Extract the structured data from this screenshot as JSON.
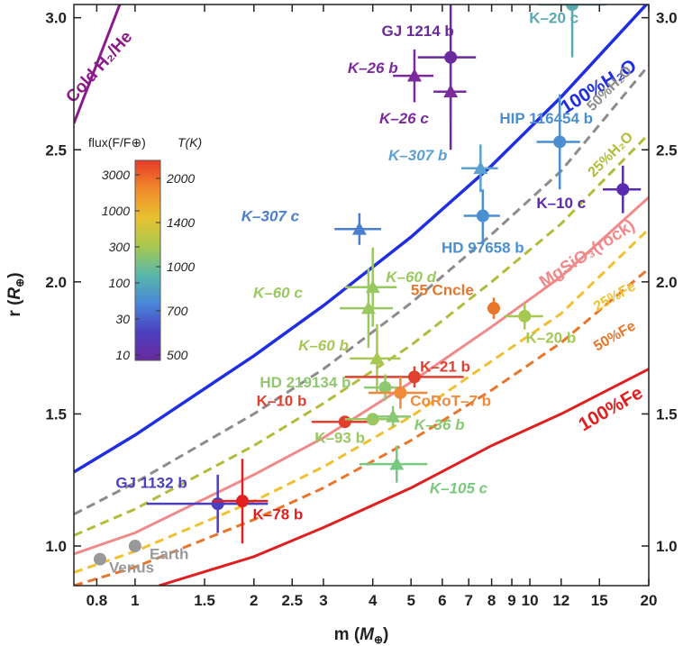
{
  "chart_data": {
    "type": "scatter",
    "xlabel": "m (M⊕)",
    "ylabel": "r (R⊕)",
    "xscale": "log",
    "xlim": [
      0.7,
      20
    ],
    "ylim": [
      0.85,
      3.05
    ],
    "xticks": [
      {
        "v": 0.8,
        "t": "0.8"
      },
      {
        "v": 1,
        "t": "1"
      },
      {
        "v": 1.5,
        "t": "1.5"
      },
      {
        "v": 2,
        "t": "2"
      },
      {
        "v": 2.5,
        "t": "2.5"
      },
      {
        "v": 3,
        "t": "3"
      },
      {
        "v": 4,
        "t": "4"
      },
      {
        "v": 5,
        "t": "5"
      },
      {
        "v": 6,
        "t": "6"
      },
      {
        "v": 7,
        "t": "7"
      },
      {
        "v": 8,
        "t": "8"
      },
      {
        "v": 9,
        "t": "9"
      },
      {
        "v": 10,
        "t": "10"
      },
      {
        "v": 12,
        "t": "12"
      },
      {
        "v": 15,
        "t": "15"
      },
      {
        "v": 20,
        "t": "20"
      }
    ],
    "yticks": [
      {
        "v": 1.0,
        "t": "1.0"
      },
      {
        "v": 1.5,
        "t": "1.5"
      },
      {
        "v": 2.0,
        "t": "2.0"
      },
      {
        "v": 2.5,
        "t": "2.5"
      },
      {
        "v": 3.0,
        "t": "3.0"
      }
    ],
    "curves": [
      {
        "name": "Cold H₂/He",
        "color": "#8b1a8b",
        "dash": false,
        "width": 3,
        "points": [
          [
            0.7,
            2.6
          ],
          [
            1.0,
            3.2
          ]
        ],
        "label": {
          "text": "Cold H₂/He",
          "x": 0.83,
          "y": 2.8,
          "rot": -48,
          "size": 19
        }
      },
      {
        "name": "100%H₂O",
        "color": "#1f2ee0",
        "dash": false,
        "width": 3.5,
        "points": [
          [
            0.7,
            1.28
          ],
          [
            1,
            1.42
          ],
          [
            2,
            1.72
          ],
          [
            3,
            1.91
          ],
          [
            5,
            2.17
          ],
          [
            8,
            2.44
          ],
          [
            12,
            2.7
          ],
          [
            20,
            3.06
          ]
        ],
        "label": {
          "text": "100%H₂O",
          "x": 15.2,
          "y": 2.72,
          "rot": -32,
          "size": 21
        }
      },
      {
        "name": "50%H₂O",
        "color": "#8c8c8c",
        "dash": true,
        "width": 3,
        "points": [
          [
            0.7,
            1.12
          ],
          [
            1,
            1.24
          ],
          [
            2,
            1.5
          ],
          [
            3,
            1.67
          ],
          [
            5,
            1.92
          ],
          [
            8,
            2.18
          ],
          [
            12,
            2.42
          ],
          [
            20,
            2.82
          ]
        ],
        "label": {
          "text": "50%H₂O",
          "x": 16.2,
          "y": 2.72,
          "rot": -45,
          "size": 16
        }
      },
      {
        "name": "25%H₂O",
        "color": "#b2bb3a",
        "dash": true,
        "width": 3,
        "points": [
          [
            0.7,
            1.04
          ],
          [
            1,
            1.14
          ],
          [
            2,
            1.38
          ],
          [
            3,
            1.54
          ],
          [
            5,
            1.76
          ],
          [
            8,
            2.0
          ],
          [
            12,
            2.22
          ],
          [
            20,
            2.56
          ]
        ],
        "label": {
          "text": "25%H₂O",
          "x": 16.3,
          "y": 2.47,
          "rot": -45,
          "size": 16
        }
      },
      {
        "name": "MgSiO₃(rock)",
        "color": "#f08a8a",
        "dash": false,
        "width": 3,
        "points": [
          [
            0.7,
            0.97
          ],
          [
            1,
            1.05
          ],
          [
            2,
            1.27
          ],
          [
            3,
            1.41
          ],
          [
            5,
            1.62
          ],
          [
            8,
            1.83
          ],
          [
            12,
            2.02
          ],
          [
            20,
            2.32
          ]
        ],
        "label": {
          "text": "MgSiO₃(rock)",
          "x": 14.2,
          "y": 2.09,
          "rot": -33,
          "size": 19
        }
      },
      {
        "name": "25%Fe",
        "color": "#f0c030",
        "dash": true,
        "width": 3,
        "points": [
          [
            0.7,
            0.9
          ],
          [
            1,
            0.98
          ],
          [
            2,
            1.17
          ],
          [
            3,
            1.3
          ],
          [
            5,
            1.49
          ],
          [
            8,
            1.7
          ],
          [
            12,
            1.88
          ],
          [
            20,
            2.2
          ]
        ],
        "label": {
          "text": "25%Fe",
          "x": 16.6,
          "y": 1.93,
          "rot": -30,
          "size": 16
        }
      },
      {
        "name": "50%Fe",
        "color": "#e8752a",
        "dash": true,
        "width": 3,
        "points": [
          [
            0.7,
            0.85
          ],
          [
            1,
            0.92
          ],
          [
            2,
            1.1
          ],
          [
            3,
            1.22
          ],
          [
            5,
            1.4
          ],
          [
            8,
            1.59
          ],
          [
            12,
            1.77
          ],
          [
            20,
            2.05
          ]
        ],
        "label": {
          "text": "50%Fe",
          "x": 16.6,
          "y": 1.78,
          "rot": -30,
          "size": 16
        }
      },
      {
        "name": "100%Fe",
        "color": "#e02020",
        "dash": false,
        "width": 3,
        "points": [
          [
            1.15,
            0.85
          ],
          [
            2,
            0.96
          ],
          [
            3,
            1.07
          ],
          [
            5,
            1.22
          ],
          [
            8,
            1.38
          ],
          [
            12,
            1.5
          ],
          [
            20,
            1.67
          ]
        ],
        "label": {
          "text": "100%Fe",
          "x": 16.3,
          "y": 1.5,
          "rot": -30,
          "size": 21
        }
      }
    ],
    "points": [
      {
        "name": "GJ 1214 b",
        "m": 6.3,
        "r": 2.85,
        "xe": [
          1.1,
          1.0
        ],
        "ye": [
          0.35,
          0.35
        ],
        "shape": "circle",
        "color": "#6a2a9c",
        "label": "GJ 1214 b",
        "lx": 5.2,
        "ly": 2.93,
        "lc": "#6a2a9c",
        "italic": false
      },
      {
        "name": "K-26 b",
        "m": 5.1,
        "r": 2.78,
        "xe": [
          0.6,
          0.6
        ],
        "ye": [
          0.1,
          0.1
        ],
        "shape": "triangle",
        "color": "#7a2a9c",
        "label": "K–26 b",
        "lx": 4.0,
        "ly": 2.79,
        "lc": "#7a2a9c",
        "italic": true
      },
      {
        "name": "K-26 c",
        "m": 6.3,
        "r": 2.72,
        "xe": [
          0.6,
          0.6
        ],
        "ye": [
          0.1,
          0.1
        ],
        "shape": "triangle",
        "color": "#7a2a9c",
        "label": "K–26 c",
        "lx": 4.8,
        "ly": 2.6,
        "lc": "#7a2a9c",
        "italic": true
      },
      {
        "name": "K-20 c",
        "m": 12.8,
        "r": 3.05,
        "xe": [
          2.3,
          2.8
        ],
        "ye": [
          0.2,
          0.2
        ],
        "shape": "circle",
        "color": "#5aa8b0",
        "label": "K–20 c",
        "lx": 11.5,
        "ly": 2.98,
        "lc": "#5aa8b0",
        "italic": false
      },
      {
        "name": "HIP 116454 b",
        "m": 11.9,
        "r": 2.53,
        "xe": [
          1.5,
          1.5
        ],
        "ye": [
          0.18,
          0.18
        ],
        "shape": "circle",
        "color": "#4a8fd0",
        "label": "HIP 116454 b",
        "lx": 11.0,
        "ly": 2.6,
        "lc": "#4a8fd0",
        "italic": false
      },
      {
        "name": "K-307 b",
        "m": 7.5,
        "r": 2.43,
        "xe": [
          0.8,
          0.8
        ],
        "ye": [
          0.09,
          0.09
        ],
        "shape": "triangle",
        "color": "#5aa0d0",
        "label": "K–307 b",
        "lx": 5.2,
        "ly": 2.46,
        "lc": "#5aa0d0",
        "italic": true
      },
      {
        "name": "K-10 c",
        "m": 17.2,
        "r": 2.35,
        "xe": [
          1.9,
          1.9
        ],
        "ye": [
          0.09,
          0.09
        ],
        "shape": "circle",
        "color": "#5a2ab0",
        "label": "K–10 c",
        "lx": 12.0,
        "ly": 2.28,
        "lc": "#5a2ab0",
        "italic": false
      },
      {
        "name": "HD 97658 b",
        "m": 7.6,
        "r": 2.25,
        "xe": [
          0.8,
          0.8
        ],
        "ye": [
          0.1,
          0.1
        ],
        "shape": "circle",
        "color": "#4a8fd0",
        "label": "HD 97658 b",
        "lx": 7.6,
        "ly": 2.11,
        "lc": "#4a8fd0",
        "italic": false
      },
      {
        "name": "K-307 c",
        "m": 3.7,
        "r": 2.2,
        "xe": [
          0.5,
          0.5
        ],
        "ye": [
          0.06,
          0.06
        ],
        "shape": "triangle",
        "color": "#4a7fd0",
        "label": "K–307 c",
        "lx": 2.2,
        "ly": 2.23,
        "lc": "#4a7fd0",
        "italic": true
      },
      {
        "name": "K-60 d",
        "m": 4.0,
        "r": 1.98,
        "xe": [
          0.6,
          0.6
        ],
        "ye": [
          0.15,
          0.15
        ],
        "shape": "triangle",
        "color": "#9ac860",
        "label": "K–60 d",
        "lx": 5.0,
        "ly": 2.0,
        "lc": "#9ac860",
        "italic": true
      },
      {
        "name": "K-60 c",
        "m": 3.9,
        "r": 1.9,
        "xe": [
          0.6,
          0.6
        ],
        "ye": [
          0.15,
          0.15
        ],
        "shape": "triangle",
        "color": "#9ac860",
        "label": "K–60 c",
        "lx": 2.3,
        "ly": 1.94,
        "lc": "#9ac860",
        "italic": true
      },
      {
        "name": "55 Cnc e",
        "m": 8.1,
        "r": 1.9,
        "xe": [
          0.3,
          0.3
        ],
        "ye": [
          0.04,
          0.04
        ],
        "shape": "circle",
        "color": "#e8762a",
        "label": "55 Cncle",
        "lx": 6.0,
        "ly": 1.95,
        "lc": "#e8762a",
        "italic": false
      },
      {
        "name": "K-20 b",
        "m": 9.7,
        "r": 1.87,
        "xe": [
          1.1,
          1.1
        ],
        "ye": [
          0.05,
          0.05
        ],
        "shape": "circle",
        "color": "#a6c850",
        "label": "K–20 b",
        "lx": 11.3,
        "ly": 1.77,
        "lc": "#a6c850",
        "italic": false
      },
      {
        "name": "K-60 b",
        "m": 4.1,
        "r": 1.71,
        "xe": [
          0.6,
          0.6
        ],
        "ye": [
          0.13,
          0.13
        ],
        "shape": "triangle",
        "color": "#a6c850",
        "label": "K–60 b",
        "lx": 3.0,
        "ly": 1.74,
        "lc": "#a6c850",
        "italic": true
      },
      {
        "name": "K-21 b",
        "m": 5.1,
        "r": 1.64,
        "xe": [
          1.7,
          1.7
        ],
        "ye": [
          0.04,
          0.04
        ],
        "shape": "circle",
        "color": "#e04030",
        "label": "K–21 b",
        "lx": 6.1,
        "ly": 1.66,
        "lc": "#e04030",
        "italic": false
      },
      {
        "name": "HD 219134 b",
        "m": 4.3,
        "r": 1.6,
        "xe": [
          0.5,
          0.5
        ],
        "ye": [
          0.05,
          0.05
        ],
        "shape": "circle",
        "color": "#90c870",
        "label": "HD 219134 b",
        "lx": 2.7,
        "ly": 1.6,
        "lc": "#90c870",
        "italic": false
      },
      {
        "name": "CoRoT-7 b",
        "m": 4.7,
        "r": 1.58,
        "xe": [
          0.8,
          0.8
        ],
        "ye": [
          0.06,
          0.06
        ],
        "shape": "circle",
        "color": "#f08a3a",
        "label": "CoRoT–7 b",
        "lx": 6.3,
        "ly": 1.53,
        "lc": "#f08a3a",
        "italic": false
      },
      {
        "name": "K-10 b",
        "m": 3.4,
        "r": 1.47,
        "xe": [
          0.6,
          0.6
        ],
        "ye": [
          0.02,
          0.02
        ],
        "shape": "circle",
        "color": "#e04030",
        "label": "K–10 b",
        "lx": 2.35,
        "ly": 1.53,
        "lc": "#e04030",
        "italic": false
      },
      {
        "name": "K-93 b",
        "m": 4.0,
        "r": 1.48,
        "xe": [
          0.6,
          0.6
        ],
        "ye": [
          0.02,
          0.02
        ],
        "shape": "circle",
        "color": "#9ac860",
        "label": "K–93 b",
        "lx": 3.3,
        "ly": 1.39,
        "lc": "#9ac860",
        "italic": false
      },
      {
        "name": "K-36 b",
        "m": 4.5,
        "r": 1.49,
        "xe": [
          0.5,
          0.5
        ],
        "ye": [
          0.04,
          0.04
        ],
        "shape": "triangle",
        "color": "#88c870",
        "label": "K–36 b",
        "lx": 5.9,
        "ly": 1.44,
        "lc": "#88c870",
        "italic": true
      },
      {
        "name": "K-105 c",
        "m": 4.6,
        "r": 1.31,
        "xe": [
          0.9,
          0.9
        ],
        "ye": [
          0.07,
          0.07
        ],
        "shape": "triangle",
        "color": "#78c880",
        "label": "K–105 c",
        "lx": 6.6,
        "ly": 1.2,
        "lc": "#78c880",
        "italic": true
      },
      {
        "name": "GJ 1132 b",
        "m": 1.62,
        "r": 1.16,
        "xe": [
          0.55,
          0.55
        ],
        "ye": [
          0.11,
          0.11
        ],
        "shape": "circle",
        "color": "#4a3fc0",
        "label": "GJ 1132 b",
        "lx": 1.1,
        "ly": 1.22,
        "lc": "#4a3fc0",
        "italic": false
      },
      {
        "name": "K-78 b",
        "m": 1.87,
        "r": 1.17,
        "xe": [
          0.3,
          0.3
        ],
        "ye": [
          0.16,
          0.16
        ],
        "shape": "circle",
        "color": "#e02020",
        "label": "K–78 b",
        "lx": 2.3,
        "ly": 1.1,
        "lc": "#e02020",
        "italic": false
      },
      {
        "name": "Earth",
        "m": 1.0,
        "r": 1.0,
        "xe": [
          0,
          0
        ],
        "ye": [
          0,
          0
        ],
        "shape": "circle",
        "color": "#999999",
        "label": "Earth",
        "lx": 1.22,
        "ly": 0.95,
        "lc": "#999999",
        "italic": false
      },
      {
        "name": "Venus",
        "m": 0.815,
        "r": 0.95,
        "xe": [
          0,
          0
        ],
        "ye": [
          0,
          0
        ],
        "shape": "circle",
        "color": "#999999",
        "label": "Venus",
        "lx": 0.98,
        "ly": 0.9,
        "lc": "#999999",
        "italic": false
      }
    ],
    "colorbar": {
      "flux_title": "flux(F/F⊕)",
      "temp_title": "T(K)",
      "flux_ticks": [
        "3000",
        "1000",
        "300",
        "100",
        "30",
        "10"
      ],
      "temp_ticks": [
        "2000",
        "1400",
        "1000",
        "700",
        "500"
      ],
      "colors": [
        "#e83a2a",
        "#f08a2a",
        "#e8c030",
        "#a8c850",
        "#58b8a8",
        "#4a88d8",
        "#4a40c0",
        "#6a2a9c"
      ]
    },
    "grid": false,
    "legend": "top-left"
  }
}
